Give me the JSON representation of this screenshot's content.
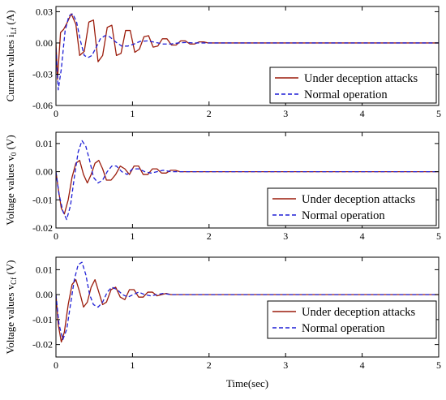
{
  "colors": {
    "attack": "#9b1c0c",
    "normal": "#1f1fd6",
    "axis": "#000000"
  },
  "chart_data": [
    {
      "type": "line",
      "ylabel": "Current values i",
      "ylabel_sub": "Lf",
      "ylabel_unit": " (A)",
      "xlabel": "",
      "xlim": [
        0,
        5
      ],
      "ylim": [
        -0.06,
        0.035
      ],
      "xticks": [
        "0",
        "1",
        "2",
        "3",
        "4",
        "5"
      ],
      "yticks": [
        {
          "value": 0.03,
          "label": "0.03"
        },
        {
          "value": 0.0,
          "label": "0.00"
        },
        {
          "value": -0.03,
          "label": "-0.03"
        },
        {
          "value": -0.06,
          "label": "-0.06"
        }
      ],
      "legend_position": "bottom-right",
      "series": [
        {
          "name": "Under deception attacks",
          "style": "solid",
          "x": [
            0.0,
            0.02,
            0.06,
            0.1,
            0.15,
            0.2,
            0.26,
            0.31,
            0.37,
            0.43,
            0.49,
            0.55,
            0.61,
            0.67,
            0.73,
            0.79,
            0.85,
            0.91,
            0.97,
            1.03,
            1.09,
            1.15,
            1.21,
            1.27,
            1.33,
            1.39,
            1.45,
            1.51,
            1.57,
            1.63,
            1.69,
            1.75,
            1.81,
            1.87,
            1.93,
            1.99,
            2.1,
            2.3,
            2.6,
            3.0,
            4.0,
            5.0
          ],
          "y": [
            0.0,
            -0.035,
            0.01,
            0.013,
            0.02,
            0.028,
            0.018,
            -0.012,
            -0.008,
            0.02,
            0.022,
            -0.018,
            -0.012,
            0.015,
            0.017,
            -0.012,
            -0.01,
            0.012,
            0.012,
            -0.009,
            -0.006,
            0.006,
            0.007,
            -0.004,
            -0.003,
            0.004,
            0.004,
            -0.002,
            -0.002,
            0.002,
            0.002,
            -0.001,
            -0.001,
            0.001,
            0.001,
            0.0,
            0.0,
            0.0,
            0.0,
            0.0,
            0.0,
            0.0
          ]
        },
        {
          "name": "Normal operation",
          "style": "dashed",
          "x": [
            0.0,
            0.03,
            0.07,
            0.12,
            0.17,
            0.22,
            0.27,
            0.32,
            0.37,
            0.42,
            0.47,
            0.52,
            0.58,
            0.64,
            0.7,
            0.78,
            0.86,
            0.94,
            1.02,
            1.1,
            1.2,
            1.3,
            1.4,
            1.5,
            1.6,
            1.7,
            1.8,
            1.9,
            2.0,
            2.2,
            2.5,
            3.0,
            4.0,
            5.0
          ],
          "y": [
            -0.005,
            -0.045,
            -0.025,
            0.012,
            0.026,
            0.028,
            0.02,
            0.002,
            -0.012,
            -0.014,
            -0.012,
            -0.005,
            0.004,
            0.007,
            0.006,
            0.001,
            -0.003,
            -0.003,
            -0.001,
            0.0015,
            0.002,
            0.0005,
            -0.001,
            -0.001,
            0.0,
            0.0005,
            0.0,
            0.0,
            0.0,
            0.0,
            0.0,
            0.0,
            0.0,
            0.0
          ]
        }
      ]
    },
    {
      "type": "line",
      "ylabel": "Voltage values v",
      "ylabel_sub": "0",
      "ylabel_unit": " (V)",
      "xlabel": "",
      "xlim": [
        0,
        5
      ],
      "ylim": [
        -0.02,
        0.014
      ],
      "xticks": [
        "0",
        "1",
        "2",
        "3",
        "4",
        "5"
      ],
      "yticks": [
        {
          "value": 0.01,
          "label": "0.01"
        },
        {
          "value": 0.0,
          "label": "0.00"
        },
        {
          "value": -0.01,
          "label": "-0.01"
        },
        {
          "value": -0.02,
          "label": "-0.02"
        }
      ],
      "legend_position": "bottom-right",
      "series": [
        {
          "name": "Under deception attacks",
          "style": "solid",
          "x": [
            0.0,
            0.03,
            0.07,
            0.11,
            0.16,
            0.21,
            0.26,
            0.31,
            0.36,
            0.41,
            0.46,
            0.51,
            0.56,
            0.61,
            0.66,
            0.72,
            0.78,
            0.84,
            0.9,
            0.96,
            1.02,
            1.08,
            1.14,
            1.2,
            1.26,
            1.32,
            1.38,
            1.44,
            1.5,
            1.56,
            1.62,
            1.68,
            1.74,
            1.8,
            1.9,
            2.0,
            2.2,
            2.5,
            3.0,
            4.0,
            5.0
          ],
          "y": [
            0.0,
            -0.006,
            -0.013,
            -0.015,
            -0.01,
            -0.002,
            0.003,
            0.004,
            -0.001,
            -0.004,
            -0.001,
            0.003,
            0.004,
            0.001,
            -0.003,
            -0.003,
            -0.001,
            0.002,
            0.001,
            -0.001,
            0.002,
            0.002,
            -0.001,
            -0.001,
            0.001,
            0.001,
            -0.0005,
            -0.0005,
            0.0005,
            0.0005,
            0.0,
            0.0,
            0.0,
            0.0,
            0.0,
            0.0,
            0.0,
            0.0,
            0.0,
            0.0,
            0.0
          ]
        },
        {
          "name": "Normal operation",
          "style": "dashed",
          "x": [
            0.0,
            0.04,
            0.09,
            0.14,
            0.19,
            0.24,
            0.29,
            0.34,
            0.39,
            0.44,
            0.49,
            0.55,
            0.61,
            0.67,
            0.73,
            0.79,
            0.86,
            0.93,
            1.0,
            1.08,
            1.16,
            1.24,
            1.32,
            1.4,
            1.5,
            1.6,
            1.7,
            1.8,
            2.0,
            2.5,
            3.0,
            4.0,
            5.0
          ],
          "y": [
            0.0,
            -0.008,
            -0.014,
            -0.017,
            -0.012,
            -0.002,
            0.007,
            0.011,
            0.009,
            0.004,
            -0.002,
            -0.004,
            -0.003,
            0.0,
            0.002,
            0.002,
            0.0,
            -0.001,
            0.001,
            0.001,
            0.0,
            -0.0005,
            0.0,
            0.0005,
            0.0,
            0.0,
            0.0,
            0.0,
            0.0,
            0.0,
            0.0,
            0.0,
            0.0
          ]
        }
      ]
    },
    {
      "type": "line",
      "ylabel": "Voltage values v",
      "ylabel_sub": "Cf",
      "ylabel_unit": " (V)",
      "xlabel": "Time(sec)",
      "xlim": [
        0,
        5
      ],
      "ylim": [
        -0.025,
        0.015
      ],
      "xticks": [
        "0",
        "1",
        "2",
        "3",
        "4",
        "5"
      ],
      "yticks": [
        {
          "value": 0.01,
          "label": "0.01"
        },
        {
          "value": 0.0,
          "label": "0.00"
        },
        {
          "value": -0.01,
          "label": "-0.01"
        },
        {
          "value": -0.02,
          "label": "-0.02"
        }
      ],
      "legend_position": "bottom-right",
      "series": [
        {
          "name": "Under deception attacks",
          "style": "solid",
          "x": [
            0.0,
            0.03,
            0.07,
            0.11,
            0.16,
            0.21,
            0.26,
            0.31,
            0.36,
            0.41,
            0.46,
            0.51,
            0.56,
            0.61,
            0.66,
            0.72,
            0.78,
            0.84,
            0.9,
            0.96,
            1.02,
            1.08,
            1.14,
            1.2,
            1.26,
            1.32,
            1.38,
            1.44,
            1.5,
            1.6,
            1.7,
            1.8,
            1.9,
            2.0,
            2.3,
            2.6,
            3.0,
            4.0,
            5.0
          ],
          "y": [
            0.0,
            -0.012,
            -0.019,
            -0.015,
            -0.004,
            0.004,
            0.006,
            0.001,
            -0.005,
            -0.003,
            0.003,
            0.006,
            0.001,
            -0.004,
            -0.003,
            0.002,
            0.003,
            -0.001,
            -0.002,
            0.002,
            0.002,
            -0.001,
            -0.001,
            0.001,
            0.001,
            -0.0005,
            0.0,
            0.0005,
            0.0,
            0.0,
            0.0,
            0.0,
            0.0,
            0.0,
            0.0,
            0.0,
            0.0,
            0.0,
            0.0
          ]
        },
        {
          "name": "Normal operation",
          "style": "dashed",
          "x": [
            0.0,
            0.04,
            0.09,
            0.14,
            0.19,
            0.24,
            0.29,
            0.34,
            0.39,
            0.44,
            0.49,
            0.55,
            0.61,
            0.67,
            0.73,
            0.8,
            0.87,
            0.94,
            1.01,
            1.08,
            1.16,
            1.24,
            1.32,
            1.4,
            1.5,
            1.6,
            1.7,
            1.8,
            2.0,
            2.5,
            3.0,
            4.0,
            5.0
          ],
          "y": [
            0.0,
            -0.012,
            -0.018,
            -0.014,
            -0.004,
            0.006,
            0.012,
            0.013,
            0.008,
            0.0,
            -0.004,
            -0.005,
            -0.003,
            0.001,
            0.003,
            0.002,
            0.0,
            -0.001,
            0.0,
            0.001,
            0.0,
            -0.0005,
            0.0,
            0.0005,
            0.0,
            0.0,
            0.0,
            0.0,
            0.0,
            0.0,
            0.0,
            0.0,
            0.0
          ]
        }
      ]
    }
  ]
}
